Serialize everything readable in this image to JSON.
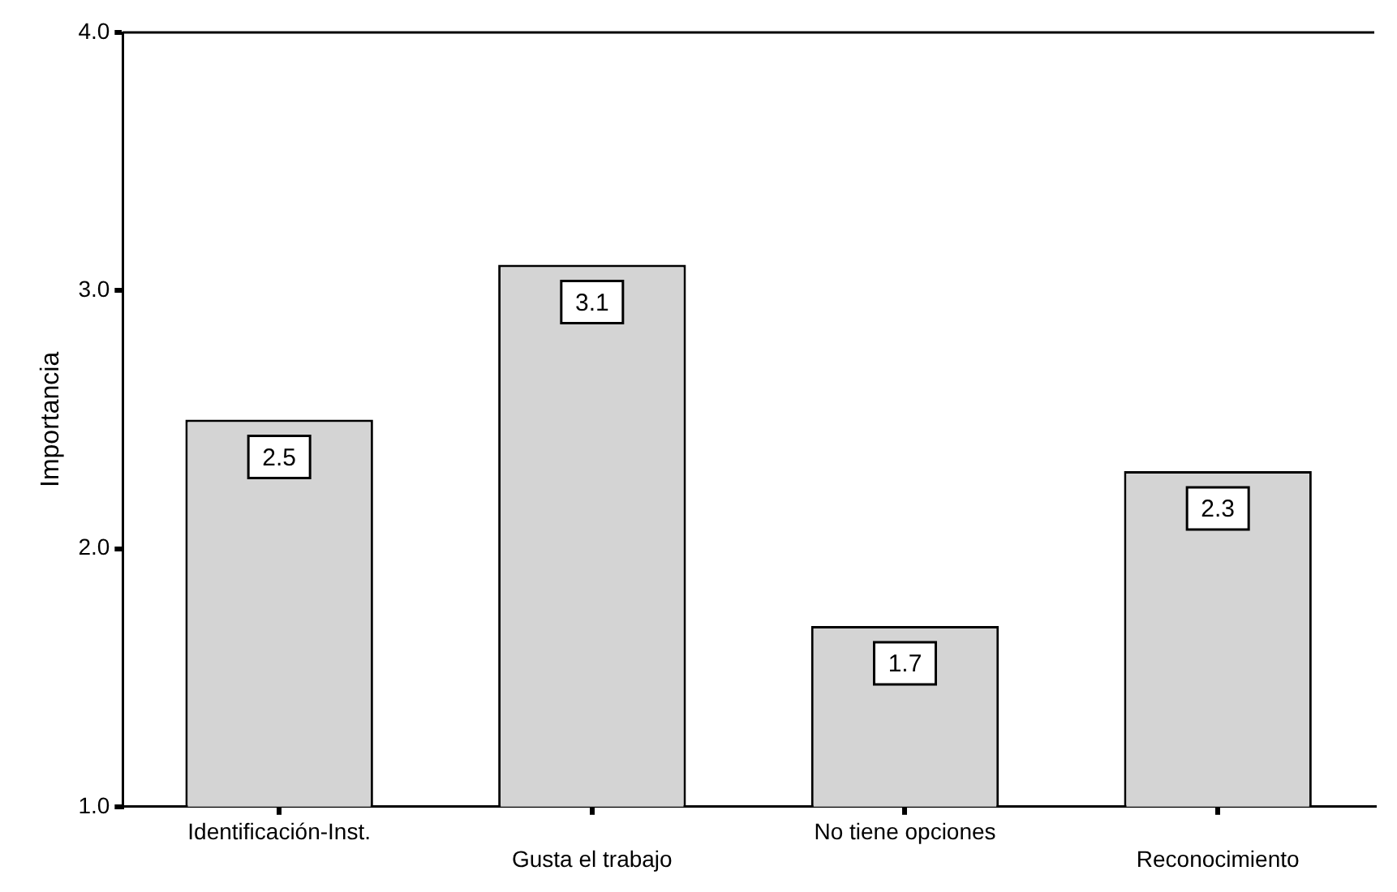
{
  "chart_data": {
    "type": "bar",
    "ylabel": "Importancia",
    "categories": [
      "Identificación-Inst.",
      "Gusta el trabajo",
      "No tiene opciones",
      "Reconocimiento"
    ],
    "values": [
      2.5,
      3.1,
      1.7,
      2.3
    ],
    "color": "#d4d4d4",
    "ylim": [
      1,
      4
    ],
    "yticks": [
      {
        "value": 1,
        "label": "1.0"
      },
      {
        "value": 2,
        "label": "2.0"
      },
      {
        "value": 3,
        "label": "3.0"
      },
      {
        "value": 4,
        "label": "4.0"
      }
    ],
    "grid": false,
    "legend": false,
    "data_labels": true
  }
}
